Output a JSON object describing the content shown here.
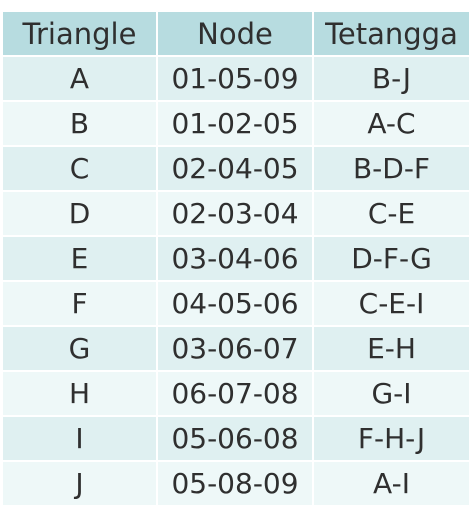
{
  "table": {
    "headers": [
      "Triangle",
      "Node",
      "Tetangga"
    ],
    "rows": [
      {
        "triangle": "A",
        "node": "01-05-09",
        "tetangga": "B-J"
      },
      {
        "triangle": "B",
        "node": "01-02-05",
        "tetangga": "A-C"
      },
      {
        "triangle": "C",
        "node": "02-04-05",
        "tetangga": "B-D-F"
      },
      {
        "triangle": "D",
        "node": "02-03-04",
        "tetangga": "C-E"
      },
      {
        "triangle": "E",
        "node": "03-04-06",
        "tetangga": "D-F-G"
      },
      {
        "triangle": "F",
        "node": "04-05-06",
        "tetangga": "C-E-I"
      },
      {
        "triangle": "G",
        "node": "03-06-07",
        "tetangga": "E-H"
      },
      {
        "triangle": "H",
        "node": "06-07-08",
        "tetangga": "G-I"
      },
      {
        "triangle": "I",
        "node": "05-06-08",
        "tetangga": "F-H-J"
      },
      {
        "triangle": "J",
        "node": "05-08-09",
        "tetangga": "A-I"
      }
    ]
  },
  "colors": {
    "header_bg": "#b7dce0",
    "row_odd_bg": "#dff0f1",
    "row_even_bg": "#eef8f8",
    "text": "#2f2f2f"
  }
}
